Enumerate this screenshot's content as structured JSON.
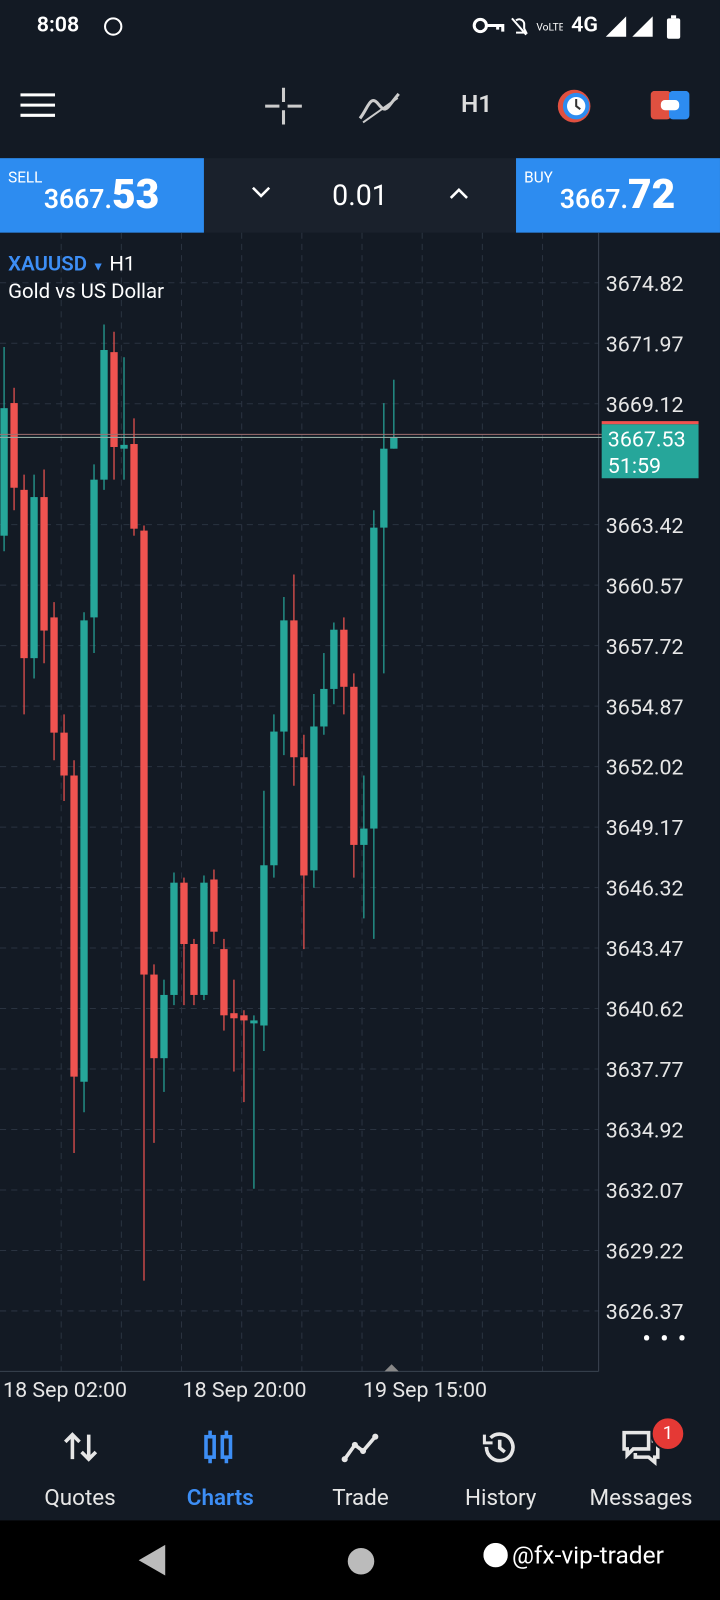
{
  "status_bar": {
    "time": "8:08",
    "network": "4G"
  },
  "toolbar": {
    "timeframe": "H1"
  },
  "trade_panel": {
    "sell": {
      "label": "SELL",
      "price": "3667.",
      "pips": "53"
    },
    "lot": "0.01",
    "buy": {
      "label": "BUY",
      "price": "3667.",
      "pips": "72"
    }
  },
  "chart_data": {
    "type": "candlestick",
    "symbol": "XAUUSD",
    "timeframe": "H1",
    "title": "Gold vs US Dollar",
    "x_labels": [
      "18 Sep 02:00",
      "18 Sep 20:00",
      "19 Sep 15:00"
    ],
    "open": [
      3662.9,
      3669.15,
      3665.06,
      3657.13,
      3664.72,
      3659.05,
      3653.62,
      3651.6,
      3637.17,
      3659.05,
      3665.54,
      3671.55,
      3667.0,
      3667.22,
      3663.14,
      3642.22,
      3638.28,
      3641.26,
      3646.55,
      3643.66,
      3641.26,
      3646.7,
      3643.42,
      3640.4,
      3640.3,
      3639.92,
      3639.82,
      3647.37,
      3653.67,
      3658.91,
      3652.46,
      3647.13,
      3653.91,
      3655.68,
      3658.47,
      3655.78,
      3648.33,
      3649.1,
      3663.28,
      3667.0
    ],
    "high": [
      3671.79,
      3669.87,
      3665.78,
      3665.78,
      3666.02,
      3659.77,
      3654.48,
      3652.32,
      3659.29,
      3666.26,
      3672.85,
      3672.51,
      3671.31,
      3668.43,
      3663.38,
      3642.7,
      3641.98,
      3647.03,
      3646.79,
      3643.9,
      3646.89,
      3647.17,
      3643.9,
      3641.98,
      3640.54,
      3640.3,
      3650.88,
      3654.48,
      3660.01,
      3661.07,
      3653.52,
      3655.44,
      3657.37,
      3658.81,
      3659.05,
      3656.41,
      3651.6,
      3664.1,
      3669.15,
      3670.25
    ],
    "low": [
      3662.17,
      3664.1,
      3654.48,
      3656.17,
      3656.89,
      3652.32,
      3650.4,
      3633.81,
      3635.73,
      3657.37,
      3665.06,
      3665.54,
      3665.54,
      3662.9,
      3627.8,
      3634.29,
      3636.69,
      3640.78,
      3640.78,
      3640.78,
      3641.02,
      3643.66,
      3639.58,
      3637.65,
      3636.21,
      3632.13,
      3638.62,
      3646.79,
      3652.56,
      3651.12,
      3643.42,
      3646.31,
      3653.52,
      3654.96,
      3654.48,
      3646.79,
      3644.87,
      3643.9,
      3656.41,
      3667.0
    ],
    "close": [
      3668.91,
      3665.16,
      3657.13,
      3664.72,
      3658.43,
      3653.62,
      3651.6,
      3637.41,
      3658.91,
      3665.54,
      3671.65,
      3667.08,
      3667.18,
      3663.23,
      3642.22,
      3638.28,
      3641.26,
      3646.55,
      3643.66,
      3641.26,
      3646.55,
      3644.24,
      3640.3,
      3640.16,
      3640.06,
      3640.06,
      3647.37,
      3653.67,
      3658.91,
      3652.46,
      3646.89,
      3653.91,
      3655.68,
      3658.47,
      3655.78,
      3648.33,
      3649.1,
      3663.28,
      3667.0,
      3667.53
    ],
    "ylim": [
      3623.52,
      3677.18
    ],
    "yticks": [
      3674.82,
      3671.97,
      3669.12,
      3663.42,
      3660.57,
      3657.72,
      3654.87,
      3652.02,
      3649.17,
      3646.32,
      3643.47,
      3640.62,
      3637.77,
      3634.92,
      3632.07,
      3629.22,
      3626.37
    ],
    "current_price": 3667.53,
    "countdown": "51:59",
    "up_color": "#26a69a",
    "down_color": "#ef5350",
    "grid": true
  },
  "nav": {
    "items": [
      "Quotes",
      "Charts",
      "Trade",
      "History",
      "Messages"
    ],
    "active": 1,
    "badge": 1
  },
  "watermark": "@fx-vip-trader"
}
